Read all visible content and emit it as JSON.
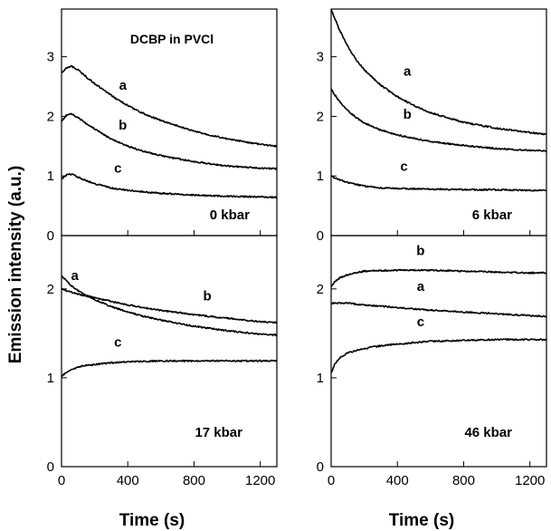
{
  "chart_data": {
    "type": "line",
    "ylabel": "Emission intensity (a.u.)",
    "xlabel": "Time (s)",
    "xlim": [
      0,
      1300
    ],
    "x_ticks": [
      "0",
      "400",
      "800",
      "1200"
    ],
    "grid": false,
    "panels": [
      {
        "id": "top-left",
        "title": "DCBP in PVCl",
        "pressure_label": "0 kbar",
        "ylim": [
          0,
          3.8
        ],
        "y_ticks": [
          "0",
          "1",
          "2",
          "3"
        ],
        "series": [
          {
            "name": "a",
            "x": [
              0,
              30,
              60,
              100,
              150,
              200,
              300,
              400,
              500,
              600,
              800,
              1000,
              1200,
              1300
            ],
            "values": [
              2.72,
              2.82,
              2.84,
              2.78,
              2.66,
              2.55,
              2.35,
              2.18,
              2.04,
              1.93,
              1.75,
              1.62,
              1.53,
              1.5
            ]
          },
          {
            "name": "b",
            "x": [
              0,
              30,
              60,
              100,
              150,
              200,
              300,
              400,
              500,
              600,
              800,
              1000,
              1200,
              1300
            ],
            "values": [
              1.92,
              2.02,
              2.04,
              1.98,
              1.88,
              1.79,
              1.62,
              1.5,
              1.41,
              1.34,
              1.24,
              1.17,
              1.13,
              1.12
            ]
          },
          {
            "name": "c",
            "x": [
              0,
              30,
              60,
              100,
              150,
              200,
              300,
              400,
              500,
              600,
              800,
              1000,
              1200,
              1300
            ],
            "values": [
              0.95,
              1.02,
              1.03,
              0.98,
              0.92,
              0.87,
              0.8,
              0.76,
              0.73,
              0.71,
              0.68,
              0.66,
              0.65,
              0.64
            ]
          }
        ],
        "labels": [
          {
            "text": "a",
            "x": 370,
            "y": 2.45
          },
          {
            "text": "b",
            "x": 370,
            "y": 1.78
          },
          {
            "text": "c",
            "x": 340,
            "y": 1.06
          }
        ]
      },
      {
        "id": "top-right",
        "title": "",
        "pressure_label": "6 kbar",
        "ylim": [
          0,
          3.8
        ],
        "y_ticks": [
          "0",
          "1",
          "2",
          "3"
        ],
        "series": [
          {
            "name": "a",
            "x": [
              0,
              50,
              100,
              150,
              200,
              300,
              400,
              500,
              600,
              800,
              1000,
              1200,
              1300
            ],
            "values": [
              3.8,
              3.45,
              3.18,
              2.95,
              2.78,
              2.52,
              2.33,
              2.18,
              2.06,
              1.9,
              1.8,
              1.73,
              1.7
            ]
          },
          {
            "name": "b",
            "x": [
              0,
              50,
              100,
              150,
              200,
              300,
              400,
              500,
              600,
              800,
              1000,
              1200,
              1300
            ],
            "values": [
              2.45,
              2.25,
              2.1,
              1.98,
              1.89,
              1.77,
              1.69,
              1.63,
              1.58,
              1.51,
              1.46,
              1.43,
              1.42
            ]
          },
          {
            "name": "c",
            "x": [
              0,
              50,
              100,
              200,
              300,
              400,
              600,
              800,
              1000,
              1200,
              1300
            ],
            "values": [
              1.0,
              0.94,
              0.89,
              0.83,
              0.8,
              0.79,
              0.78,
              0.77,
              0.77,
              0.76,
              0.76
            ]
          }
        ],
        "labels": [
          {
            "text": "a",
            "x": 460,
            "y": 2.68
          },
          {
            "text": "b",
            "x": 460,
            "y": 1.96
          },
          {
            "text": "c",
            "x": 440,
            "y": 1.09
          }
        ]
      },
      {
        "id": "bottom-left",
        "title": "",
        "pressure_label": "17 kbar",
        "ylim": [
          0,
          2.6
        ],
        "y_ticks": [
          "0",
          "1",
          "2"
        ],
        "series": [
          {
            "name": "a",
            "x": [
              0,
              50,
              100,
              200,
              300,
              400,
              500,
              600,
              800,
              1000,
              1200,
              1300
            ],
            "values": [
              2.15,
              2.05,
              1.98,
              1.88,
              1.8,
              1.74,
              1.69,
              1.65,
              1.58,
              1.53,
              1.49,
              1.48
            ]
          },
          {
            "name": "b",
            "x": [
              0,
              50,
              100,
              200,
              300,
              400,
              500,
              600,
              800,
              1000,
              1200,
              1300
            ],
            "values": [
              2.0,
              1.97,
              1.94,
              1.9,
              1.86,
              1.82,
              1.79,
              1.76,
              1.71,
              1.67,
              1.63,
              1.62
            ]
          },
          {
            "name": "c",
            "x": [
              0,
              30,
              60,
              100,
              150,
              200,
              300,
              400,
              600,
              800,
              1000,
              1200,
              1300
            ],
            "values": [
              1.02,
              1.06,
              1.09,
              1.12,
              1.14,
              1.15,
              1.17,
              1.18,
              1.19,
              1.19,
              1.19,
              1.19,
              1.19
            ]
          }
        ],
        "labels": [
          {
            "text": "a",
            "x": 80,
            "y": 2.1
          },
          {
            "text": "b",
            "x": 880,
            "y": 1.87
          },
          {
            "text": "c",
            "x": 340,
            "y": 1.35
          }
        ]
      },
      {
        "id": "bottom-right",
        "title": "",
        "pressure_label": "46 kbar",
        "ylim": [
          0,
          2.6
        ],
        "y_ticks": [
          "0",
          "1",
          "2"
        ],
        "series": [
          {
            "name": "a",
            "x": [
              0,
              100,
              200,
              400,
              600,
              800,
              1000,
              1200,
              1300
            ],
            "values": [
              1.84,
              1.84,
              1.82,
              1.79,
              1.76,
              1.74,
              1.72,
              1.7,
              1.69
            ]
          },
          {
            "name": "b",
            "x": [
              0,
              20,
              50,
              100,
              200,
              400,
              600,
              800,
              1000,
              1200,
              1300
            ],
            "values": [
              2.02,
              2.08,
              2.12,
              2.16,
              2.2,
              2.21,
              2.21,
              2.2,
              2.19,
              2.18,
              2.18
            ]
          },
          {
            "name": "c",
            "x": [
              0,
              20,
              50,
              100,
              200,
              300,
              400,
              600,
              800,
              1000,
              1200,
              1300
            ],
            "values": [
              1.05,
              1.15,
              1.22,
              1.28,
              1.33,
              1.36,
              1.38,
              1.41,
              1.42,
              1.43,
              1.43,
              1.43
            ]
          }
        ],
        "labels": [
          {
            "text": "b",
            "x": 540,
            "y": 2.38
          },
          {
            "text": "a",
            "x": 540,
            "y": 1.98
          },
          {
            "text": "c",
            "x": 540,
            "y": 1.58
          }
        ]
      }
    ]
  }
}
